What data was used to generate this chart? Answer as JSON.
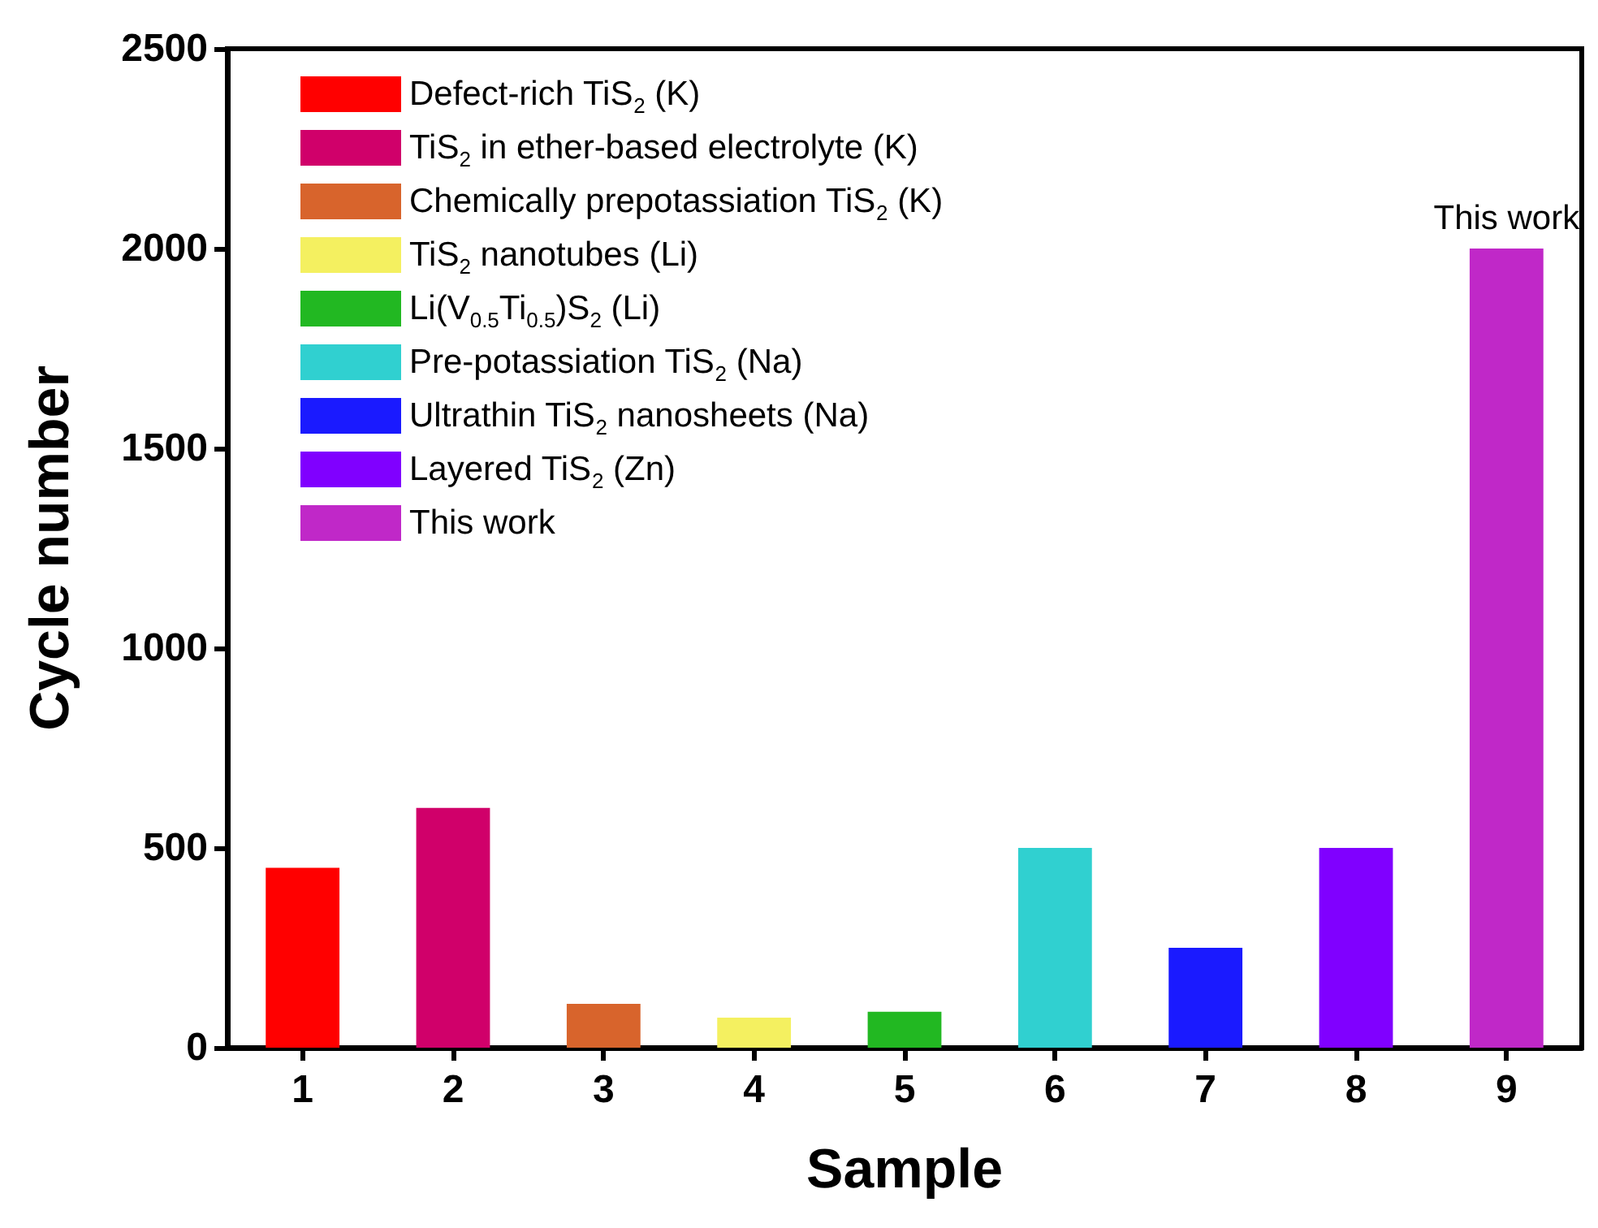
{
  "chart_data": {
    "type": "bar",
    "xlabel": "Sample",
    "ylabel": "Cycle number",
    "categories": [
      "1",
      "2",
      "3",
      "4",
      "5",
      "6",
      "7",
      "8",
      "9"
    ],
    "series": [
      {
        "name": "Defect-rich TiS$_{2}$ (K)",
        "color": "#ff0000",
        "values": [
          450,
          null,
          null,
          null,
          null,
          null,
          null,
          null,
          null
        ]
      },
      {
        "name": "TiS$_{2}$ in ether-based electrolyte (K)",
        "color": "#d0006a",
        "values": [
          null,
          600,
          null,
          null,
          null,
          null,
          null,
          null,
          null
        ]
      },
      {
        "name": "Chemically prepotassiation TiS$_{2}$ (K)",
        "color": "#d8642c",
        "values": [
          null,
          null,
          110,
          null,
          null,
          null,
          null,
          null,
          null
        ]
      },
      {
        "name": "TiS$_{2}$ nanotubes (Li)",
        "color": "#f4f060",
        "values": [
          null,
          null,
          null,
          75,
          null,
          null,
          null,
          null,
          null
        ]
      },
      {
        "name": "Li(V$_{0.5}$Ti$_{0.5}$)S$_{2}$ (Li)",
        "color": "#22b822",
        "values": [
          null,
          null,
          null,
          null,
          90,
          null,
          null,
          null,
          null
        ]
      },
      {
        "name": "Pre-potassiation TiS$_{2}$ (Na)",
        "color": "#30d0d0",
        "values": [
          null,
          null,
          null,
          null,
          null,
          500,
          null,
          null,
          null
        ]
      },
      {
        "name": "Ultrathin TiS$_{2}$ nanosheets (Na)",
        "color": "#1a1aff",
        "values": [
          null,
          null,
          null,
          null,
          null,
          null,
          250,
          null,
          null
        ]
      },
      {
        "name": "Layered TiS$_{2}$ (Zn)",
        "color": "#8000ff",
        "values": [
          null,
          null,
          null,
          null,
          null,
          null,
          null,
          500,
          null
        ]
      },
      {
        "name": "This work",
        "color": "#c028c8",
        "values": [
          null,
          null,
          null,
          null,
          null,
          null,
          null,
          null,
          2000
        ]
      }
    ],
    "ylim": [
      0,
      2500
    ],
    "yticks": [
      0,
      500,
      1000,
      1500,
      2000,
      2500
    ],
    "annotations": [
      {
        "text": "This work",
        "x": "9",
        "y": 2000
      }
    ],
    "legend": "top left",
    "grid": false
  }
}
